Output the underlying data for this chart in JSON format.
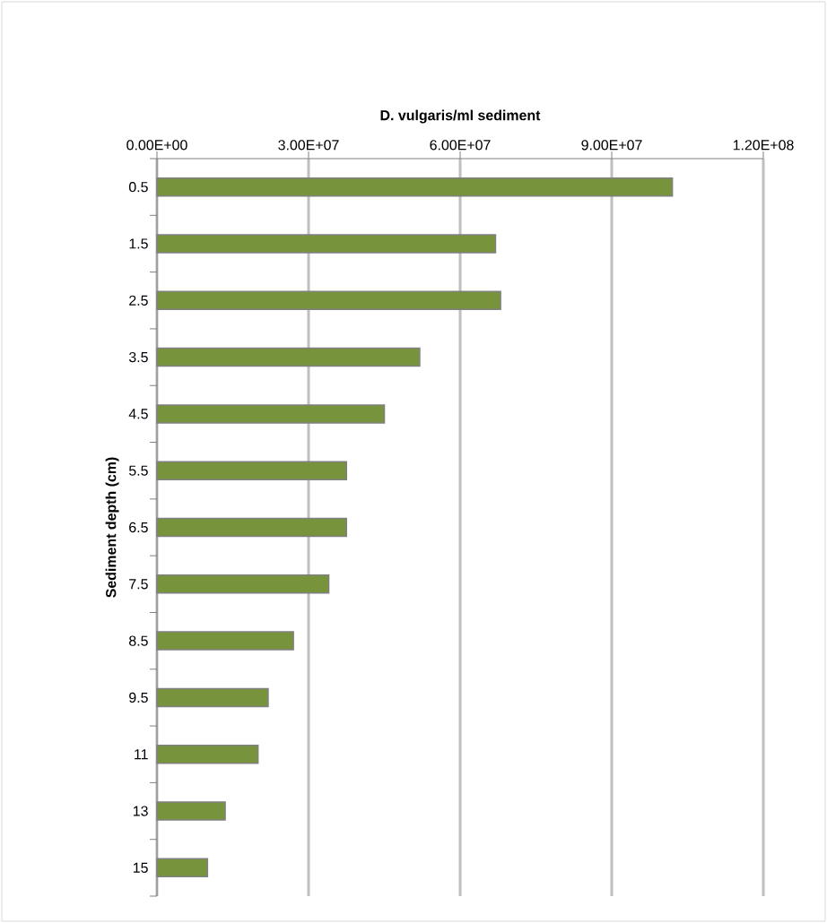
{
  "chart_data": {
    "type": "bar",
    "orientation": "horizontal",
    "title": "D. vulgaris/ml sediment",
    "ylabel": "Sediment depth (cm)",
    "categories": [
      "0.5",
      "1.5",
      "2.5",
      "3.5",
      "4.5",
      "5.5",
      "6.5",
      "7.5",
      "8.5",
      "9.5",
      "11",
      "13",
      "15"
    ],
    "values": [
      102000000,
      67000000,
      68000000,
      52000000,
      45000000,
      37500000,
      37500000,
      34000000,
      27000000,
      22000000,
      20000000,
      13500000,
      10000000
    ],
    "color": "#77933c",
    "xlim": [
      0,
      120000000
    ],
    "xticks": [
      {
        "value": 0,
        "label": "0.00E+00"
      },
      {
        "value": 30000000,
        "label": "3.00E+07"
      },
      {
        "value": 60000000,
        "label": "6.00E+07"
      },
      {
        "value": 90000000,
        "label": "9.00E+07"
      },
      {
        "value": 120000000,
        "label": "1.20E+08"
      }
    ],
    "grid": "x"
  }
}
